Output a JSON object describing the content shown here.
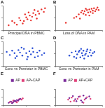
{
  "chart_data": [
    {
      "type": "scatter",
      "title": "A",
      "x_label": "Principal DNA in PBMC",
      "xlim": [
        0,
        4
      ],
      "ylim": [
        0,
        4
      ],
      "xticks": [
        0,
        2,
        4
      ],
      "yticks": [
        0,
        2,
        4
      ],
      "tick_labels": false,
      "grid": false,
      "series": [
        {
          "color": "#e8302a",
          "marker": "circle",
          "x": [
            0.5,
            1.0,
            1.2,
            1.5,
            1.8,
            2.0,
            2.1,
            2.3,
            2.5,
            2.6,
            2.8,
            3.0,
            3.1,
            3.3,
            3.5,
            1.4,
            1.7,
            2.2,
            2.9,
            0.8,
            3.6,
            2.4,
            1.9,
            2.7
          ],
          "values": [
            0.8,
            1.2,
            0.9,
            1.6,
            1.5,
            2.1,
            1.8,
            2.4,
            2.2,
            2.8,
            2.5,
            3.1,
            2.7,
            3.4,
            3.0,
            2.0,
            1.1,
            2.9,
            1.9,
            1.5,
            3.6,
            1.6,
            2.6,
            3.3
          ]
        }
      ]
    },
    {
      "type": "scatter",
      "title": "B",
      "x_label": "Loss of DNA in PAM",
      "xlim": [
        0,
        4
      ],
      "ylim": [
        0,
        4
      ],
      "xticks": [
        0,
        2,
        4
      ],
      "yticks": [
        0,
        2,
        4
      ],
      "tick_labels": false,
      "grid": false,
      "series": [
        {
          "color": "#e8302a",
          "marker": "circle",
          "x": [
            1.8,
            2.0,
            2.2,
            2.4,
            2.5,
            2.6,
            2.7,
            2.8,
            2.9,
            3.0,
            3.1,
            3.2,
            3.3,
            3.4,
            3.5,
            2.3,
            2.1,
            3.6,
            2.9,
            1.6,
            3.2,
            2.6,
            0.9,
            3.7
          ],
          "values": [
            2.2,
            2.6,
            2.9,
            2.7,
            3.1,
            2.5,
            3.3,
            2.9,
            3.4,
            3.0,
            3.5,
            3.2,
            3.6,
            3.1,
            3.4,
            3.2,
            1.9,
            3.7,
            2.4,
            2.0,
            2.8,
            3.5,
            1.2,
            3.3
          ]
        }
      ]
    },
    {
      "type": "scatter",
      "title": "C",
      "x_label": "Gene vs Promoter in PBMC",
      "xlim": [
        -3,
        3
      ],
      "ylim": [
        -2,
        2
      ],
      "xticks": [
        -3,
        0,
        3
      ],
      "yticks": [
        -2,
        0,
        2
      ],
      "tick_labels": false,
      "grid": false,
      "series": [
        {
          "color": "#2a4fd6",
          "marker": "circle",
          "x": [
            -2.5,
            -2.1,
            -1.8,
            -1.5,
            -1.2,
            -1.0,
            -0.8,
            -0.5,
            -0.3,
            0.0,
            0.2,
            0.4,
            0.6,
            0.9,
            1.1,
            1.4,
            1.7,
            2.0,
            2.3,
            -0.6,
            0.8,
            -1.4,
            1.5,
            0.1
          ],
          "values": [
            0.3,
            -0.2,
            0.5,
            0.1,
            -0.4,
            0.6,
            0.2,
            -0.3,
            0.8,
            0.1,
            -0.5,
            0.4,
            -0.1,
            0.3,
            -0.6,
            0.2,
            0.5,
            -0.2,
            0.1,
            1.0,
            0.9,
            -0.7,
            -0.4,
            -0.9
          ]
        }
      ]
    },
    {
      "type": "scatter",
      "title": "D",
      "x_label": "Gene vs Promoter in PAM",
      "xlim": [
        -3,
        3
      ],
      "ylim": [
        -2,
        2
      ],
      "xticks": [
        -3,
        0,
        3
      ],
      "yticks": [
        -2,
        0,
        2
      ],
      "tick_labels": false,
      "grid": false,
      "series": [
        {
          "color": "#2a4fd6",
          "marker": "circle",
          "x": [
            -1.2,
            -0.9,
            -0.6,
            -0.4,
            -0.2,
            0.0,
            0.2,
            0.4,
            0.6,
            0.8,
            1.0,
            1.2,
            1.4,
            1.6,
            1.8,
            2.0,
            0.3,
            0.7,
            1.1,
            -0.3,
            0.5,
            1.5,
            0.9,
            0.1
          ],
          "values": [
            -0.3,
            0.2,
            -0.5,
            0.4,
            -0.1,
            0.3,
            -0.6,
            0.1,
            0.5,
            -0.2,
            0.4,
            -0.4,
            0.2,
            -0.3,
            0.1,
            0.3,
            0.8,
            -0.8,
            0.7,
            -0.7,
            -0.3,
            0.6,
            0.0,
            0.5
          ]
        }
      ]
    },
    {
      "type": "scatter",
      "title": "E",
      "xlim": [
        -2,
        2
      ],
      "ylim": [
        -2,
        2
      ],
      "xticks": [
        -2,
        0,
        2
      ],
      "yticks": [
        -2,
        0,
        2
      ],
      "tick_labels": false,
      "grid": false,
      "legend": "top",
      "series": [
        {
          "name": "AP",
          "color": "#7a2a9a",
          "marker": "circle",
          "x": [
            -1.5,
            -1.3,
            -1.1,
            -1.0,
            -0.9,
            -0.8,
            -0.7,
            -0.6,
            -1.2,
            -0.5
          ],
          "values": [
            -1.4,
            -1.1,
            -1.2,
            -0.9,
            -1.0,
            -0.7,
            -0.8,
            -0.6,
            -1.5,
            -0.4
          ]
        },
        {
          "name": "AP+CAP",
          "color": "#e0407a",
          "marker": "circle",
          "x": [
            -1.4,
            -1.2,
            -1.0,
            -0.9,
            -0.7,
            -0.6,
            -0.4,
            -0.3,
            -1.1,
            -0.8
          ],
          "values": [
            -1.2,
            -1.3,
            -1.0,
            -1.1,
            -0.9,
            -0.5,
            -0.6,
            -0.3,
            -0.8,
            -1.3
          ]
        }
      ]
    },
    {
      "type": "scatter",
      "title": "F",
      "xlim": [
        -2,
        2
      ],
      "ylim": [
        -2,
        2
      ],
      "xticks": [
        -2,
        0,
        2
      ],
      "yticks": [
        -2,
        0,
        2
      ],
      "tick_labels": false,
      "grid": false,
      "legend": "top",
      "series": [
        {
          "name": "AP",
          "color": "#7a2a9a",
          "marker": "circle",
          "x": [
            -0.8,
            -0.5,
            -0.3,
            0.0,
            0.2,
            0.4,
            0.6,
            -0.2,
            0.9,
            0.3
          ],
          "values": [
            -0.2,
            0.3,
            -0.5,
            0.1,
            -0.8,
            0.4,
            -0.3,
            -1.0,
            0.2,
            -1.2
          ]
        },
        {
          "name": "AP+CAP",
          "color": "#e0407a",
          "marker": "circle",
          "x": [
            -0.9,
            -0.6,
            -0.4,
            -0.1,
            0.1,
            0.5,
            0.7,
            1.0,
            -0.7,
            0.4
          ],
          "values": [
            -0.6,
            -0.1,
            -0.9,
            -0.4,
            0.2,
            -0.6,
            0.0,
            -0.4,
            -1.1,
            -1.4
          ]
        }
      ]
    }
  ]
}
